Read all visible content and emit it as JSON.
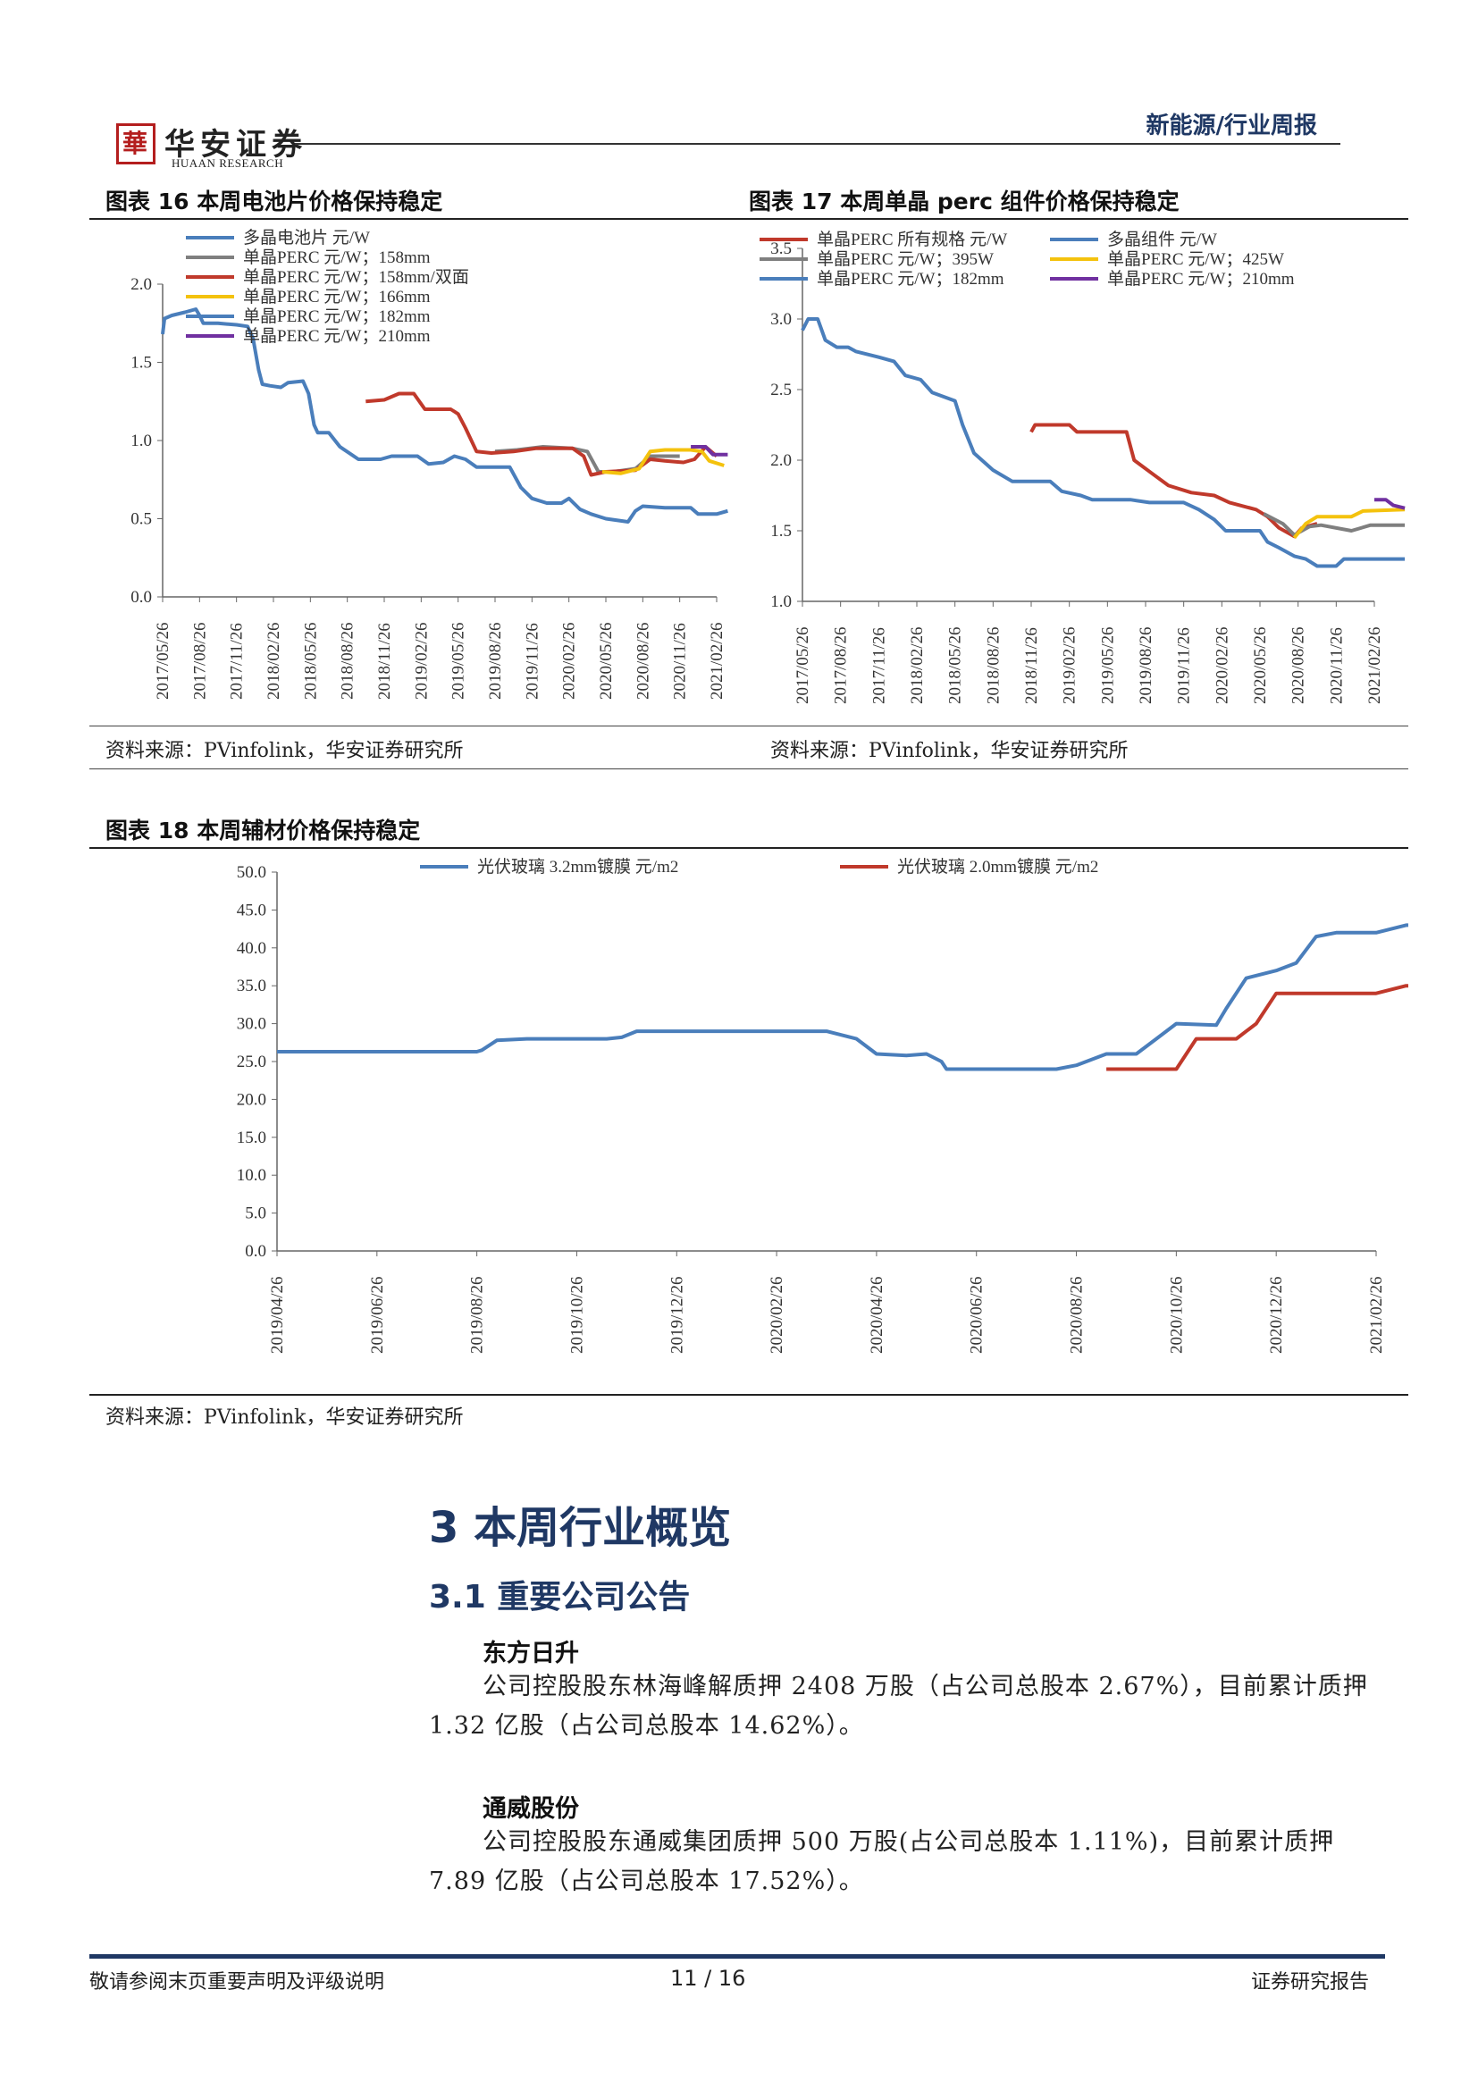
{
  "header": {
    "logo_mark": "華",
    "logo_cn": "华安证券",
    "logo_en": "HUAAN RESEARCH",
    "category": "新能源/行业周报"
  },
  "fig16": {
    "title": "图表 16 本周电池片价格保持稳定",
    "source": "资料来源：PVinfolink，华安证券研究所"
  },
  "fig17": {
    "title": "图表 17 本周单晶 perc 组件价格保持稳定",
    "source": "资料来源：PVinfolink，华安证券研究所"
  },
  "fig18": {
    "title": "图表 18 本周辅材价格保持稳定",
    "source": "资料来源：PVinfolink，华安证券研究所"
  },
  "chart_data": [
    {
      "type": "line",
      "title": "",
      "ylim": [
        0,
        2.0
      ],
      "yticks": [
        "0.0",
        "0.5",
        "1.0",
        "1.5",
        "2.0"
      ],
      "xticks": [
        "2017/05/26",
        "2017/08/26",
        "2017/11/26",
        "2018/02/26",
        "2018/05/26",
        "2018/08/26",
        "2018/11/26",
        "2019/02/26",
        "2019/05/26",
        "2019/08/26",
        "2019/11/26",
        "2020/02/26",
        "2020/05/26",
        "2020/08/26",
        "2020/11/26",
        "2021/02/26"
      ],
      "legend_position": "top-left",
      "series": [
        {
          "name": "多晶电池片 元/W",
          "color": "#4a7ebb",
          "points": [
            [
              0,
              1.68
            ],
            [
              0.05,
              1.78
            ],
            [
              0.25,
              1.8
            ],
            [
              0.6,
              1.82
            ],
            [
              0.9,
              1.84
            ],
            [
              1.0,
              1.8
            ],
            [
              1.1,
              1.75
            ],
            [
              1.5,
              1.75
            ],
            [
              2.0,
              1.74
            ],
            [
              2.3,
              1.73
            ],
            [
              2.45,
              1.65
            ],
            [
              2.6,
              1.45
            ],
            [
              2.7,
              1.36
            ],
            [
              2.9,
              1.35
            ],
            [
              3.2,
              1.34
            ],
            [
              3.4,
              1.37
            ],
            [
              3.8,
              1.38
            ],
            [
              3.95,
              1.3
            ],
            [
              4.1,
              1.1
            ],
            [
              4.2,
              1.05
            ],
            [
              4.5,
              1.05
            ],
            [
              4.8,
              0.96
            ],
            [
              5.3,
              0.88
            ],
            [
              5.9,
              0.88
            ],
            [
              6.2,
              0.9
            ],
            [
              6.9,
              0.9
            ],
            [
              7.2,
              0.85
            ],
            [
              7.6,
              0.86
            ],
            [
              7.9,
              0.9
            ],
            [
              8.2,
              0.88
            ],
            [
              8.5,
              0.83
            ],
            [
              9.4,
              0.83
            ],
            [
              9.7,
              0.7
            ],
            [
              10.0,
              0.63
            ],
            [
              10.4,
              0.6
            ],
            [
              10.8,
              0.6
            ],
            [
              11.0,
              0.63
            ],
            [
              11.3,
              0.56
            ],
            [
              11.6,
              0.53
            ],
            [
              12.0,
              0.5
            ],
            [
              12.6,
              0.48
            ],
            [
              12.8,
              0.55
            ],
            [
              13.0,
              0.58
            ],
            [
              13.6,
              0.57
            ],
            [
              14.3,
              0.57
            ],
            [
              14.5,
              0.53
            ],
            [
              15.0,
              0.53
            ],
            [
              15.3,
              0.55
            ]
          ]
        },
        {
          "name": "单晶PERC 元/W；158mm",
          "color": "#7f7f7f",
          "points": [
            [
              9.0,
              0.93
            ],
            [
              9.6,
              0.94
            ],
            [
              10.3,
              0.96
            ],
            [
              11.1,
              0.95
            ],
            [
              11.5,
              0.93
            ],
            [
              11.8,
              0.8
            ],
            [
              12.2,
              0.8
            ],
            [
              12.8,
              0.82
            ],
            [
              13.2,
              0.9
            ],
            [
              14.0,
              0.9
            ]
          ]
        },
        {
          "name": "单晶PERC 元/W；158mm/双面",
          "color": "#c0392b",
          "points": [
            [
              5.5,
              1.25
            ],
            [
              6.0,
              1.26
            ],
            [
              6.4,
              1.3
            ],
            [
              6.8,
              1.3
            ],
            [
              7.1,
              1.2
            ],
            [
              7.8,
              1.2
            ],
            [
              8.0,
              1.17
            ],
            [
              8.2,
              1.08
            ],
            [
              8.5,
              0.93
            ],
            [
              8.9,
              0.92
            ],
            [
              9.5,
              0.93
            ],
            [
              10.1,
              0.95
            ],
            [
              11.1,
              0.95
            ],
            [
              11.4,
              0.9
            ],
            [
              11.6,
              0.78
            ],
            [
              12.0,
              0.8
            ],
            [
              12.8,
              0.81
            ],
            [
              13.2,
              0.88
            ],
            [
              13.6,
              0.87
            ],
            [
              14.1,
              0.86
            ],
            [
              14.4,
              0.88
            ],
            [
              14.7,
              0.96
            ],
            [
              15.0,
              0.9
            ]
          ]
        },
        {
          "name": "单晶PERC 元/W；166mm",
          "color": "#f4c20d",
          "points": [
            [
              11.9,
              0.8
            ],
            [
              12.4,
              0.79
            ],
            [
              12.9,
              0.82
            ],
            [
              13.2,
              0.93
            ],
            [
              13.6,
              0.94
            ],
            [
              14.3,
              0.94
            ],
            [
              14.6,
              0.93
            ],
            [
              14.8,
              0.87
            ],
            [
              15.2,
              0.84
            ]
          ]
        },
        {
          "name": "单晶PERC 元/W；182mm",
          "color": "#4a7ebb",
          "points": []
        },
        {
          "name": "单晶PERC 元/W；210mm",
          "color": "#7030a0",
          "points": [
            [
              14.3,
              0.96
            ],
            [
              14.7,
              0.96
            ],
            [
              14.9,
              0.91
            ],
            [
              15.3,
              0.91
            ]
          ]
        }
      ]
    },
    {
      "type": "line",
      "title": "",
      "ylim": [
        1.0,
        3.5
      ],
      "yticks": [
        "1.0",
        "1.5",
        "2.0",
        "2.5",
        "3.0",
        "3.5"
      ],
      "xticks": [
        "2017/05/26",
        "2017/08/26",
        "2017/11/26",
        "2018/02/26",
        "2018/05/26",
        "2018/08/26",
        "2018/11/26",
        "2019/02/26",
        "2019/05/26",
        "2019/08/26",
        "2019/11/26",
        "2020/02/26",
        "2020/05/26",
        "2020/08/26",
        "2020/11/26",
        "2021/02/26"
      ],
      "legend_position": "top",
      "series": [
        {
          "name": "单晶PERC 所有规格 元/W",
          "color": "#c0392b",
          "points": [
            [
              6.0,
              2.2
            ],
            [
              6.1,
              2.25
            ],
            [
              7.0,
              2.25
            ],
            [
              7.2,
              2.2
            ],
            [
              8.5,
              2.2
            ],
            [
              8.7,
              2.0
            ],
            [
              9.2,
              1.9
            ],
            [
              9.6,
              1.82
            ],
            [
              10.2,
              1.77
            ],
            [
              10.8,
              1.75
            ],
            [
              11.2,
              1.7
            ],
            [
              11.9,
              1.65
            ],
            [
              12.2,
              1.6
            ],
            [
              12.5,
              1.52
            ],
            [
              12.9,
              1.46
            ],
            [
              13.1,
              1.52
            ],
            [
              13.5,
              1.55
            ]
          ]
        },
        {
          "name": "多晶组件 元/W",
          "color": "#4a7ebb",
          "points": [
            [
              0,
              2.92
            ],
            [
              0.15,
              3.0
            ],
            [
              0.4,
              3.0
            ],
            [
              0.6,
              2.85
            ],
            [
              0.9,
              2.8
            ],
            [
              1.2,
              2.8
            ],
            [
              1.4,
              2.77
            ],
            [
              2.0,
              2.73
            ],
            [
              2.4,
              2.7
            ],
            [
              2.7,
              2.6
            ],
            [
              3.1,
              2.57
            ],
            [
              3.4,
              2.48
            ],
            [
              4.0,
              2.42
            ],
            [
              4.2,
              2.25
            ],
            [
              4.5,
              2.05
            ],
            [
              5.0,
              1.93
            ],
            [
              5.5,
              1.85
            ],
            [
              6.5,
              1.85
            ],
            [
              6.8,
              1.78
            ],
            [
              7.3,
              1.75
            ],
            [
              7.6,
              1.72
            ],
            [
              8.6,
              1.72
            ],
            [
              9.1,
              1.7
            ],
            [
              10.0,
              1.7
            ],
            [
              10.4,
              1.65
            ],
            [
              10.8,
              1.58
            ],
            [
              11.1,
              1.5
            ],
            [
              12.0,
              1.5
            ],
            [
              12.2,
              1.42
            ],
            [
              12.5,
              1.38
            ],
            [
              12.9,
              1.32
            ],
            [
              13.2,
              1.3
            ],
            [
              13.5,
              1.25
            ],
            [
              14.0,
              1.25
            ],
            [
              14.2,
              1.3
            ],
            [
              15.8,
              1.3
            ]
          ]
        },
        {
          "name": "单晶PERC 元/W；395W",
          "color": "#7f7f7f",
          "points": [
            [
              12.1,
              1.62
            ],
            [
              12.6,
              1.55
            ],
            [
              12.9,
              1.47
            ],
            [
              13.3,
              1.53
            ],
            [
              13.6,
              1.54
            ],
            [
              14.4,
              1.5
            ],
            [
              14.9,
              1.54
            ],
            [
              15.8,
              1.54
            ]
          ]
        },
        {
          "name": "单晶PERC 元/W；425W",
          "color": "#f4c20d",
          "points": [
            [
              12.9,
              1.45
            ],
            [
              13.2,
              1.55
            ],
            [
              13.5,
              1.6
            ],
            [
              14.4,
              1.6
            ],
            [
              14.7,
              1.64
            ],
            [
              15.8,
              1.65
            ]
          ]
        },
        {
          "name": "单晶PERC 元/W；182mm",
          "color": "#4a7ebb",
          "points": []
        },
        {
          "name": "单晶PERC 元/W；210mm",
          "color": "#7030a0",
          "points": [
            [
              15.0,
              1.72
            ],
            [
              15.3,
              1.72
            ],
            [
              15.5,
              1.68
            ],
            [
              15.8,
              1.66
            ]
          ]
        }
      ]
    },
    {
      "type": "line",
      "title": "",
      "ylim": [
        0,
        50
      ],
      "yticks": [
        "0.0",
        "5.0",
        "10.0",
        "15.0",
        "20.0",
        "25.0",
        "30.0",
        "35.0",
        "40.0",
        "45.0",
        "50.0"
      ],
      "xticks": [
        "2019/04/26",
        "2019/06/26",
        "2019/08/26",
        "2019/10/26",
        "2019/12/26",
        "2020/02/26",
        "2020/04/26",
        "2020/06/26",
        "2020/08/26",
        "2020/10/26",
        "2020/12/26",
        "2021/02/26"
      ],
      "legend_position": "top",
      "series": [
        {
          "name": "光伏玻璃 3.2mm镀膜 元/m2",
          "color": "#4a7ebb",
          "points": [
            [
              0,
              26.3
            ],
            [
              2.0,
              26.3
            ],
            [
              2.05,
              26.5
            ],
            [
              2.2,
              27.8
            ],
            [
              2.5,
              28.0
            ],
            [
              3.0,
              28.0
            ],
            [
              3.3,
              28.0
            ],
            [
              3.45,
              28.2
            ],
            [
              3.6,
              29.0
            ],
            [
              4.0,
              29.0
            ],
            [
              5.5,
              29.0
            ],
            [
              5.8,
              28.0
            ],
            [
              6.0,
              26.0
            ],
            [
              6.3,
              25.8
            ],
            [
              6.5,
              26.0
            ],
            [
              6.65,
              25.0
            ],
            [
              6.7,
              24.0
            ],
            [
              7.0,
              24.0
            ],
            [
              7.8,
              24.0
            ],
            [
              8.0,
              24.5
            ],
            [
              8.3,
              26.0
            ],
            [
              8.6,
              26.0
            ],
            [
              8.8,
              28.0
            ],
            [
              9.0,
              30.0
            ],
            [
              9.4,
              29.8
            ],
            [
              9.5,
              32.0
            ],
            [
              9.7,
              36.0
            ],
            [
              10.0,
              37.0
            ],
            [
              10.2,
              38.0
            ],
            [
              10.4,
              41.5
            ],
            [
              10.6,
              42.0
            ],
            [
              11.0,
              42.0
            ],
            [
              11.3,
              43.0
            ],
            [
              12.0,
              43.0
            ],
            [
              12.8,
              43.0
            ]
          ]
        },
        {
          "name": "光伏玻璃 2.0mm镀膜 元/m2",
          "color": "#c0392b",
          "points": [
            [
              8.3,
              24.0
            ],
            [
              8.8,
              24.0
            ],
            [
              9.0,
              24.0
            ],
            [
              9.2,
              28.0
            ],
            [
              9.6,
              28.0
            ],
            [
              9.8,
              30.0
            ],
            [
              10.0,
              34.0
            ],
            [
              10.5,
              34.0
            ],
            [
              11.0,
              34.0
            ],
            [
              11.3,
              35.0
            ],
            [
              12.0,
              35.0
            ],
            [
              12.5,
              34.5
            ],
            [
              12.8,
              34.5
            ]
          ]
        }
      ]
    }
  ],
  "section": {
    "number_title": "3 本周行业概览",
    "sub_title": "3.1 重要公司公告",
    "items": [
      {
        "company": "东方日升",
        "text": "公司控股股东林海峰解质押 2408 万股（占公司总股本 2.67%），目前累计质押 1.32 亿股（占公司总股本 14.62%）。"
      },
      {
        "company": "通威股份",
        "text": "公司控股股东通威集团质押 500 万股(占公司总股本 1.11%)，目前累计质押 7.89 亿股（占公司总股本 17.52%）。"
      }
    ]
  },
  "footer": {
    "left": "敬请参阅末页重要声明及评级说明",
    "page": "11 / 16",
    "right": "证券研究报告"
  }
}
